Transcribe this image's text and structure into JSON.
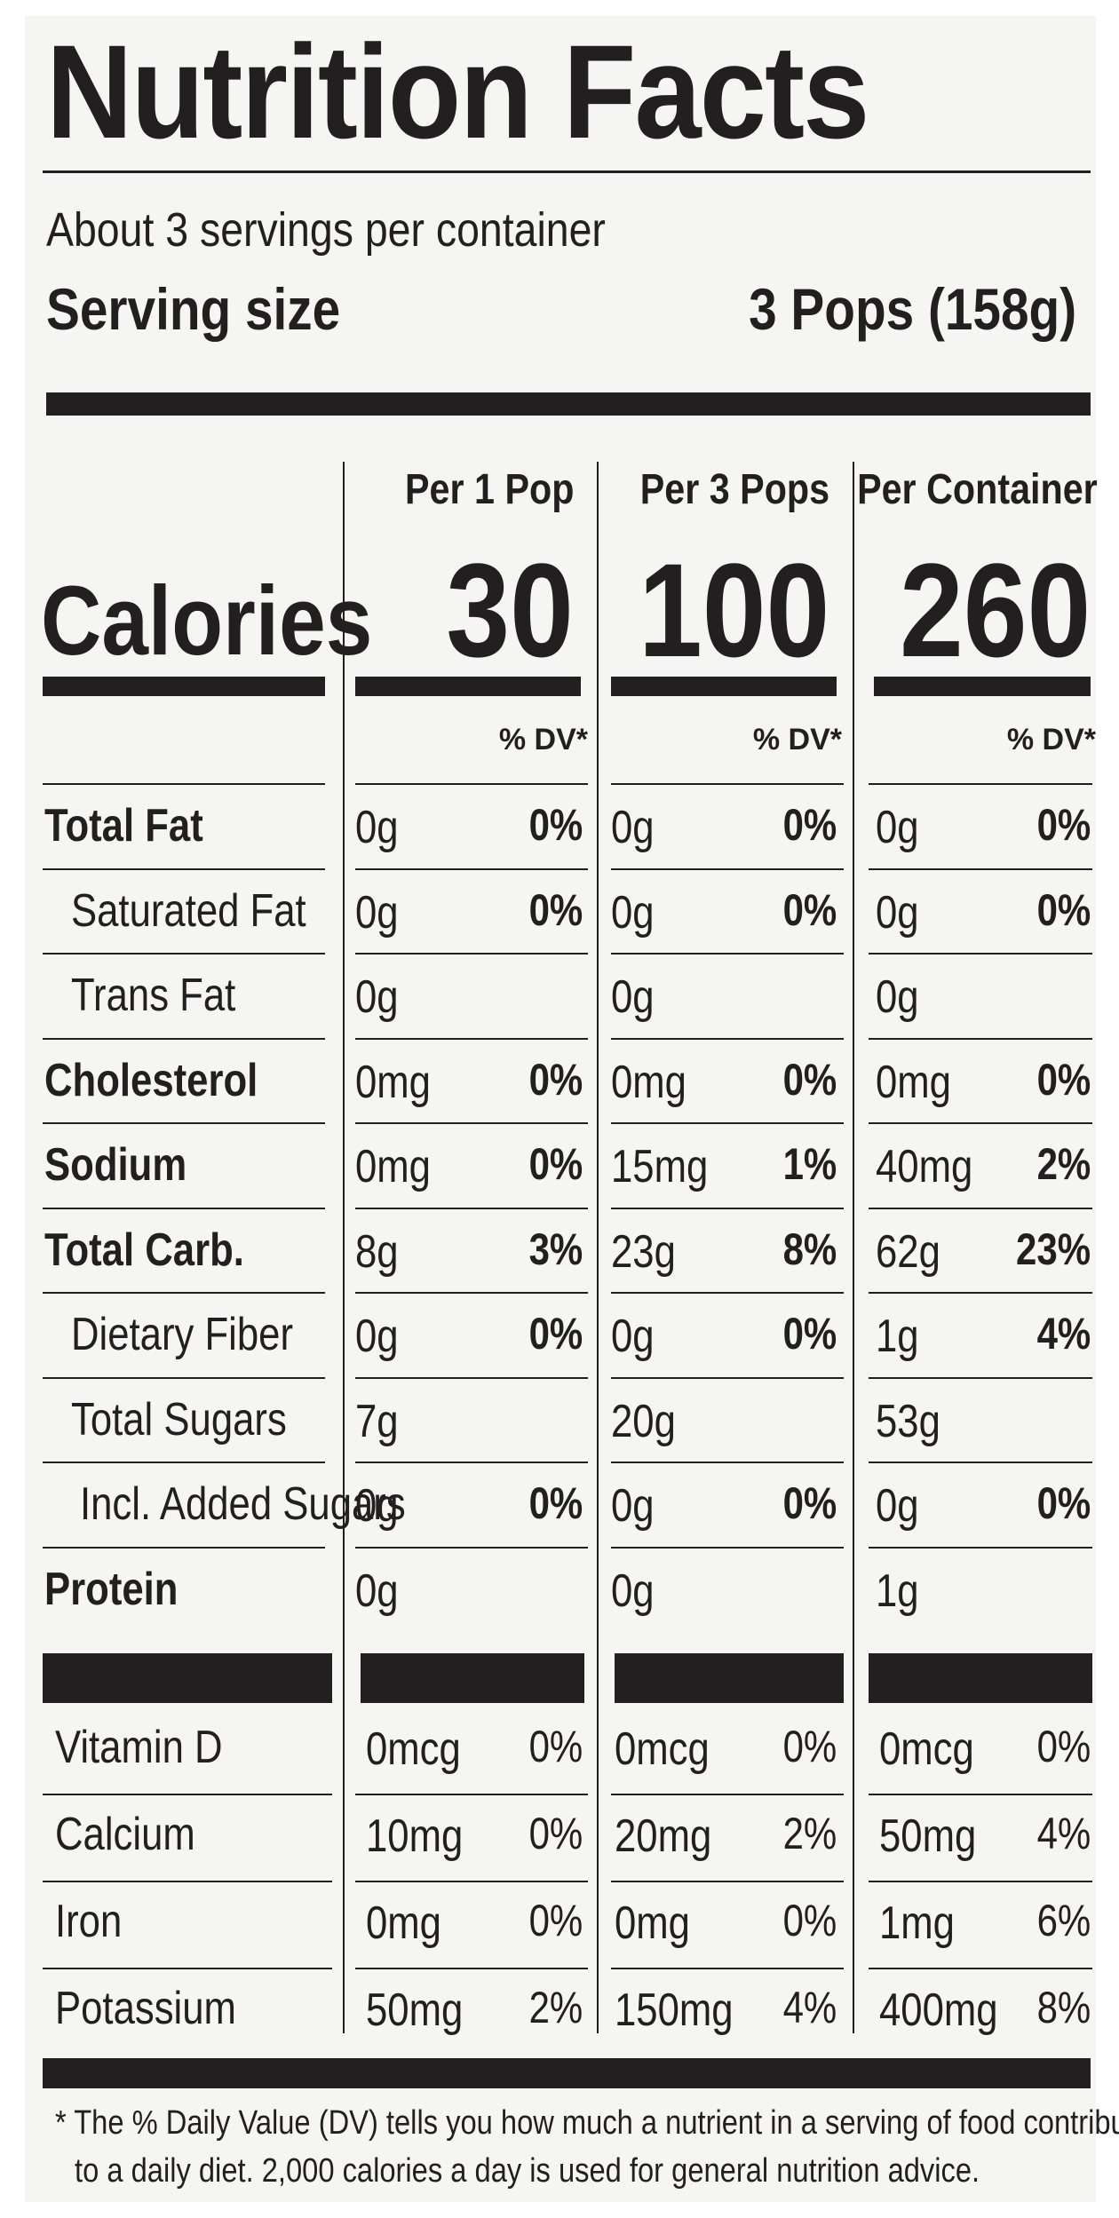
{
  "title": "Nutrition Facts",
  "servings_per_container": "About 3 servings per container",
  "serving_size_label": "Serving size",
  "serving_size_value": "3 Pops (158g)",
  "columns": [
    {
      "header": "Per 1 Pop",
      "calories": "30"
    },
    {
      "header": "Per 3 Pops",
      "calories": "100"
    },
    {
      "header": "Per Container",
      "calories": "260"
    }
  ],
  "calories_label": "Calories",
  "dv_header": "% DV*",
  "nutrients": [
    {
      "label": "Total Fat",
      "bold": true,
      "indent": 0,
      "values": [
        [
          "0g",
          "0%"
        ],
        [
          "0g",
          "0%"
        ],
        [
          "0g",
          "0%"
        ]
      ]
    },
    {
      "label": "Saturated Fat",
      "bold": false,
      "indent": 1,
      "values": [
        [
          "0g",
          "0%"
        ],
        [
          "0g",
          "0%"
        ],
        [
          "0g",
          "0%"
        ]
      ]
    },
    {
      "label": "Trans Fat",
      "bold": false,
      "indent": 1,
      "values": [
        [
          "0g",
          ""
        ],
        [
          "0g",
          ""
        ],
        [
          "0g",
          ""
        ]
      ]
    },
    {
      "label": "Cholesterol",
      "bold": true,
      "indent": 0,
      "values": [
        [
          "0mg",
          "0%"
        ],
        [
          "0mg",
          "0%"
        ],
        [
          "0mg",
          "0%"
        ]
      ]
    },
    {
      "label": "Sodium",
      "bold": true,
      "indent": 0,
      "values": [
        [
          "0mg",
          "0%"
        ],
        [
          "15mg",
          "1%"
        ],
        [
          "40mg",
          "2%"
        ]
      ]
    },
    {
      "label": "Total Carb.",
      "bold": true,
      "indent": 0,
      "values": [
        [
          "8g",
          "3%"
        ],
        [
          "23g",
          "8%"
        ],
        [
          "62g",
          "23%"
        ]
      ]
    },
    {
      "label": "Dietary Fiber",
      "bold": false,
      "indent": 1,
      "values": [
        [
          "0g",
          "0%"
        ],
        [
          "0g",
          "0%"
        ],
        [
          "1g",
          "4%"
        ]
      ]
    },
    {
      "label": "Total Sugars",
      "bold": false,
      "indent": 1,
      "values": [
        [
          "7g",
          ""
        ],
        [
          "20g",
          ""
        ],
        [
          "53g",
          ""
        ]
      ]
    },
    {
      "label": "Incl. Added Sugars",
      "bold": false,
      "indent": 2,
      "values": [
        [
          "0g",
          "0%"
        ],
        [
          "0g",
          "0%"
        ],
        [
          "0g",
          "0%"
        ]
      ]
    },
    {
      "label": "Protein",
      "bold": true,
      "indent": 0,
      "values": [
        [
          "0g",
          ""
        ],
        [
          "0g",
          ""
        ],
        [
          "1g",
          ""
        ]
      ]
    }
  ],
  "vitamins": [
    {
      "label": "Vitamin D",
      "values": [
        [
          "0mcg",
          "0%"
        ],
        [
          "0mcg",
          "0%"
        ],
        [
          "0mcg",
          "0%"
        ]
      ]
    },
    {
      "label": "Calcium",
      "values": [
        [
          "10mg",
          "0%"
        ],
        [
          "20mg",
          "2%"
        ],
        [
          "50mg",
          "4%"
        ]
      ]
    },
    {
      "label": "Iron",
      "values": [
        [
          "0mg",
          "0%"
        ],
        [
          "0mg",
          "0%"
        ],
        [
          "1mg",
          "6%"
        ]
      ]
    },
    {
      "label": "Potassium",
      "values": [
        [
          "50mg",
          "2%"
        ],
        [
          "150mg",
          "4%"
        ],
        [
          "400mg",
          "8%"
        ]
      ]
    }
  ],
  "footnote_line1": "* The % Daily Value (DV) tells you how much a nutrient in a serving of food contributes",
  "footnote_line2": "to a daily diet. 2,000 calories a day is used for general nutrition advice."
}
